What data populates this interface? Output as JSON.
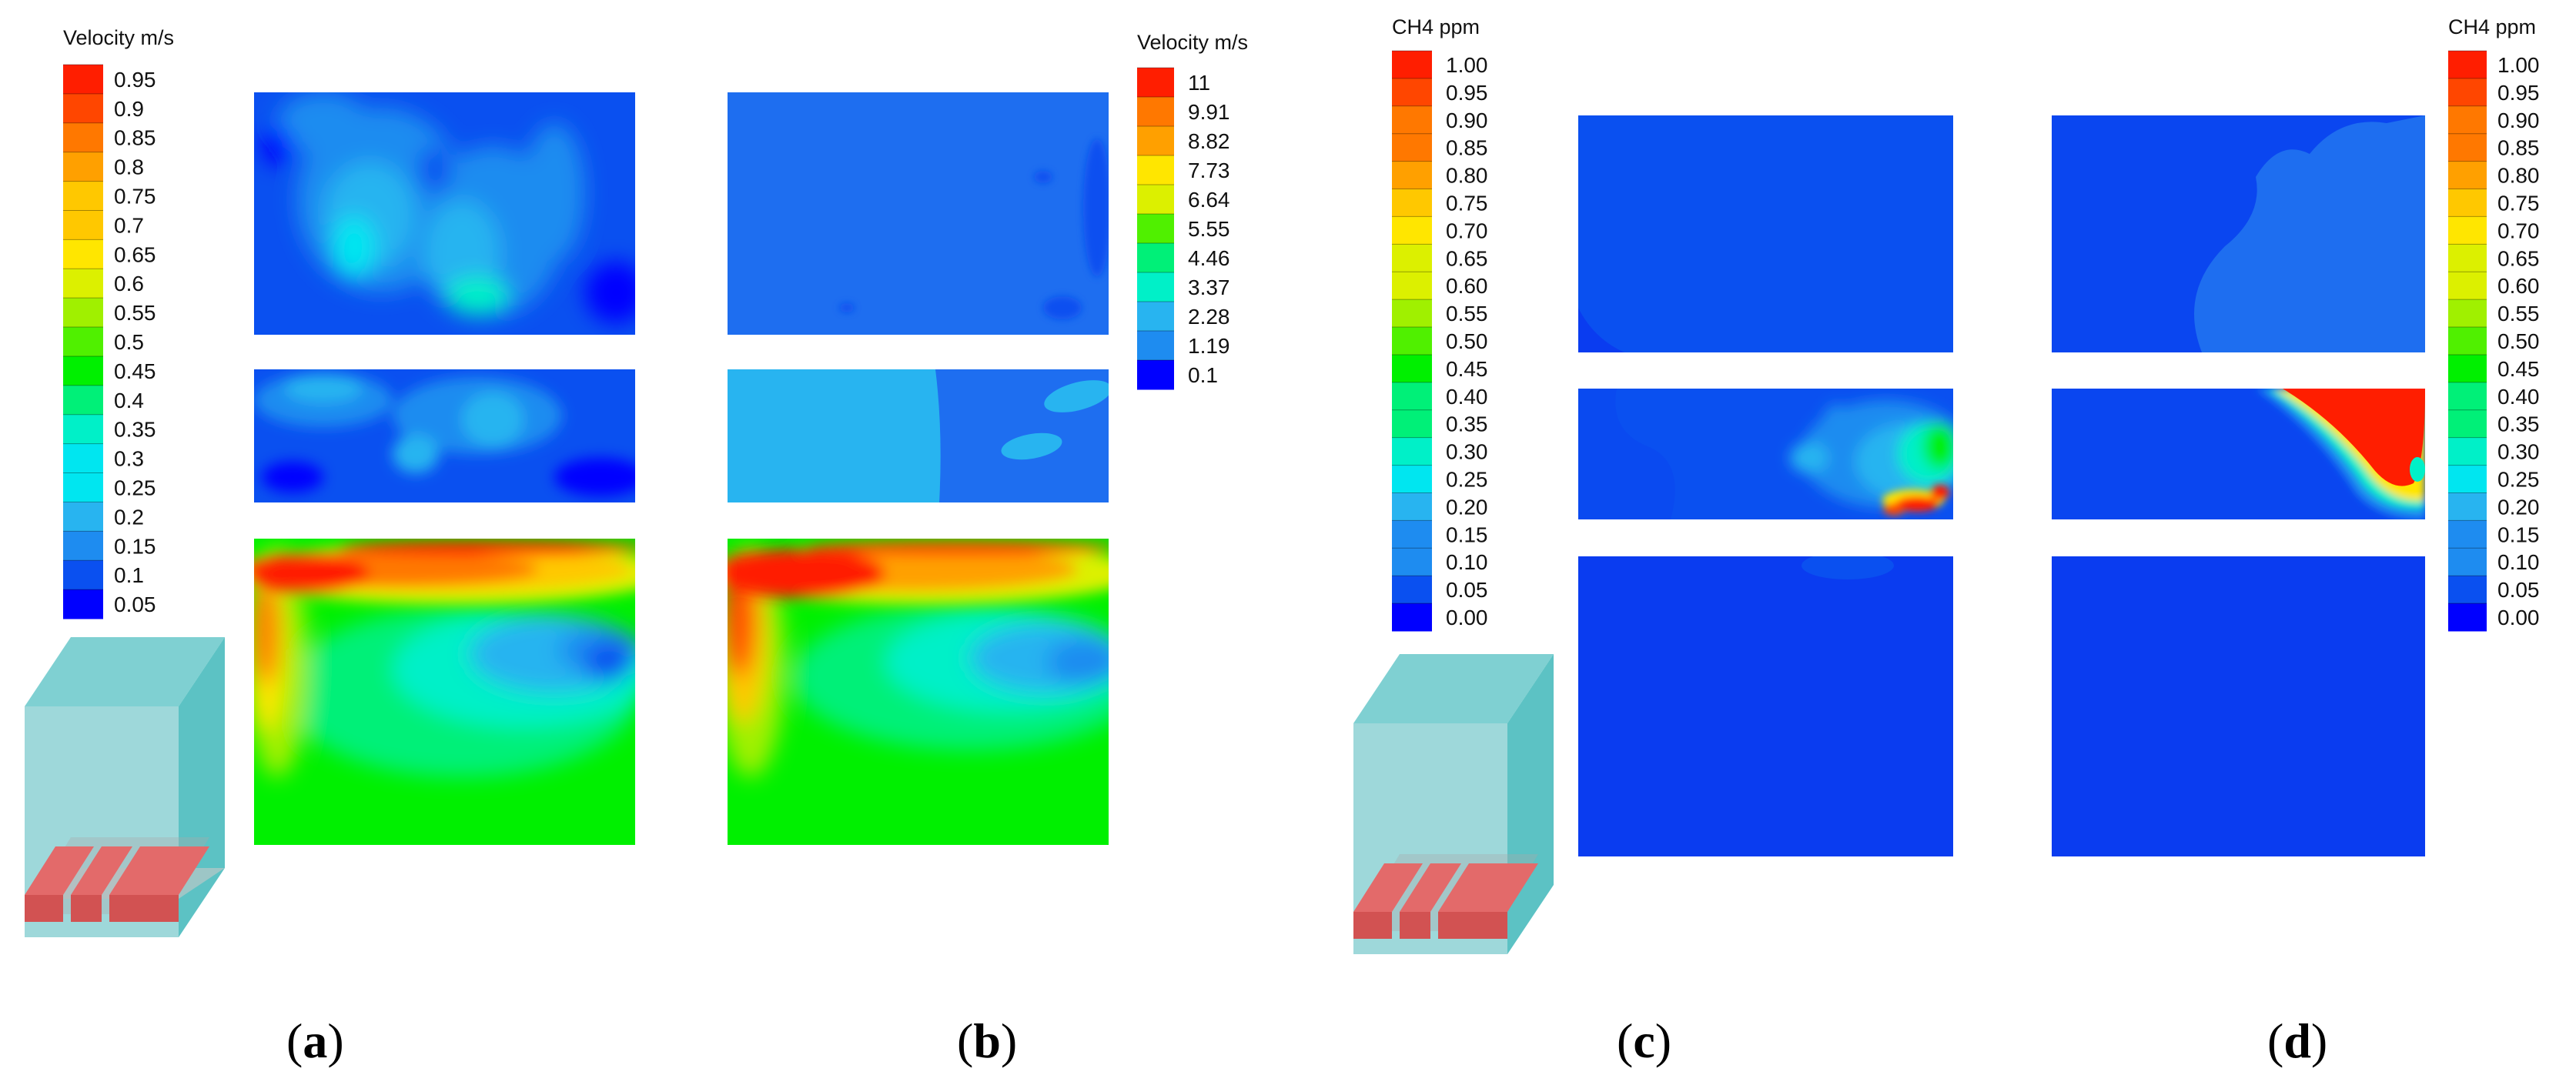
{
  "figure": {
    "panels": [
      {
        "id": "a",
        "label_text": "a",
        "legend": {
          "title": "Velocity m/s",
          "ticks": [
            "0.95",
            "0.9",
            "0.85",
            "0.8",
            "0.75",
            "0.7",
            "0.65",
            "0.6",
            "0.55",
            "0.5",
            "0.45",
            "0.4",
            "0.35",
            "0.3",
            "0.25",
            "0.2",
            "0.15",
            "0.1",
            "0.05"
          ]
        },
        "has_geometry_sketch": true
      },
      {
        "id": "b",
        "label_text": "b",
        "legend": {
          "title": "Velocity m/s",
          "ticks": [
            "11",
            "9.91",
            "8.82",
            "7.73",
            "6.64",
            "5.55",
            "4.46",
            "3.37",
            "2.28",
            "1.19",
            "0.1"
          ]
        },
        "has_geometry_sketch": false
      },
      {
        "id": "c",
        "label_text": "c",
        "legend": {
          "title": "CH4 ppm",
          "ticks": [
            "1.00",
            "0.95",
            "0.90",
            "0.85",
            "0.80",
            "0.75",
            "0.70",
            "0.65",
            "0.60",
            "0.55",
            "0.50",
            "0.45",
            "0.40",
            "0.35",
            "0.30",
            "0.25",
            "0.20",
            "0.15",
            "0.10",
            "0.05",
            "0.00"
          ]
        },
        "has_geometry_sketch": true
      },
      {
        "id": "d",
        "label_text": "d",
        "legend": {
          "title": "CH4 ppm",
          "ticks": [
            "1.00",
            "0.95",
            "0.90",
            "0.85",
            "0.80",
            "0.75",
            "0.70",
            "0.65",
            "0.60",
            "0.55",
            "0.50",
            "0.45",
            "0.40",
            "0.35",
            "0.30",
            "0.25",
            "0.20",
            "0.15",
            "0.10",
            "0.05",
            "0.00"
          ]
        },
        "has_geometry_sketch": false
      }
    ],
    "colors": {
      "colormap": [
        "#0000ff",
        "#0a50f0",
        "#1e8cf0",
        "#28b4f0",
        "#00e6f0",
        "#00f0c8",
        "#00f078",
        "#00f000",
        "#50f000",
        "#a0f000",
        "#dcf000",
        "#ffe600",
        "#ffc800",
        "#ffa000",
        "#ff7800",
        "#ff4600",
        "#ff1e00"
      ],
      "sketch_box_front": "#9ed8da",
      "sketch_box_side": "#5cc2c4",
      "sketch_box_top": "#7fd0d2",
      "sketch_floor": "#a9a9a9",
      "sketch_inlet": "#e36a6a"
    }
  }
}
